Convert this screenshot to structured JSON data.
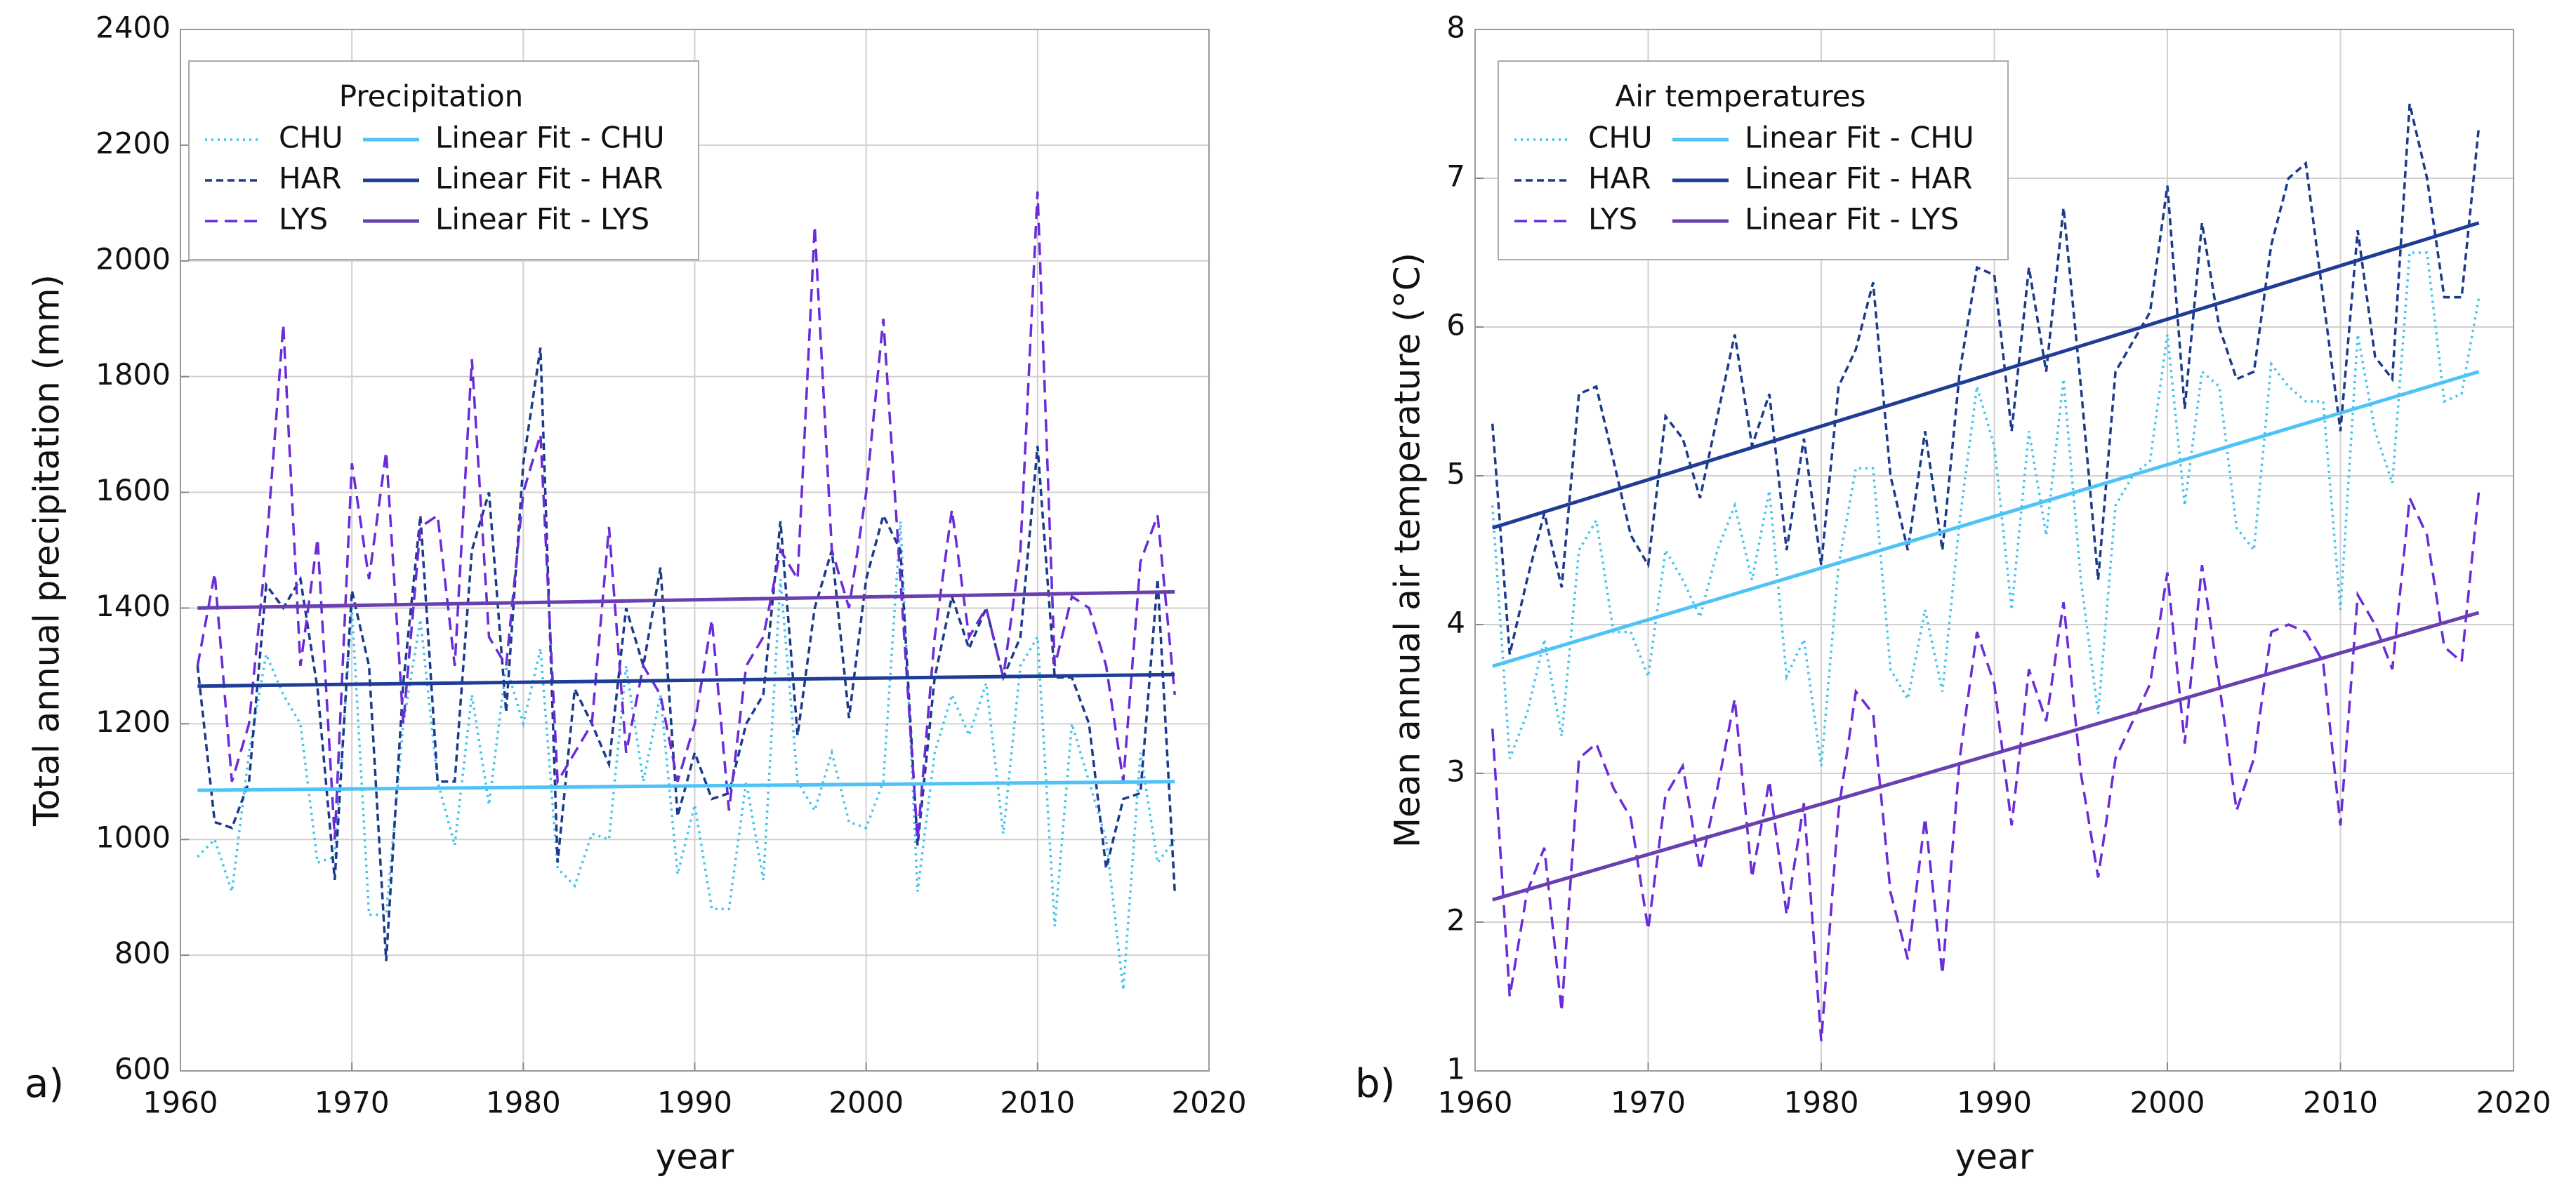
{
  "chart_data": [
    {
      "type": "line",
      "panel_label": "a)",
      "title": "Precipitation",
      "xlabel": "year",
      "ylabel": "Total annual precipitation (mm)",
      "xlim": [
        1960,
        2020
      ],
      "xticks": [
        1960,
        1970,
        1980,
        1990,
        2000,
        2010,
        2020
      ],
      "ylim": [
        600,
        2400
      ],
      "yticks": [
        600,
        800,
        1000,
        1200,
        1400,
        1600,
        1800,
        2000,
        2200,
        2400
      ],
      "grid": true,
      "x": [
        1961,
        1962,
        1963,
        1964,
        1965,
        1966,
        1967,
        1968,
        1969,
        1970,
        1971,
        1972,
        1973,
        1974,
        1975,
        1976,
        1977,
        1978,
        1979,
        1980,
        1981,
        1982,
        1983,
        1984,
        1985,
        1986,
        1987,
        1988,
        1989,
        1990,
        1991,
        1992,
        1993,
        1994,
        1995,
        1996,
        1997,
        1998,
        1999,
        2000,
        2001,
        2002,
        2003,
        2004,
        2005,
        2006,
        2007,
        2008,
        2009,
        2010,
        2011,
        2012,
        2013,
        2014,
        2015,
        2016,
        2017,
        2018
      ],
      "series": [
        {
          "name": "CHU",
          "color": "#3fc3ee",
          "linestyle": "dotted",
          "values": [
            970,
            1000,
            910,
            1150,
            1320,
            1250,
            1200,
            960,
            970,
            1400,
            870,
            870,
            1200,
            1380,
            1100,
            990,
            1250,
            1060,
            1300,
            1200,
            1330,
            950,
            920,
            1010,
            1000,
            1300,
            1100,
            1250,
            940,
            1060,
            880,
            880,
            1100,
            930,
            1450,
            1100,
            1050,
            1150,
            1030,
            1020,
            1100,
            1550,
            910,
            1150,
            1250,
            1180,
            1270,
            1010,
            1300,
            1350,
            850,
            1200,
            1100,
            1000,
            740,
            1150,
            960,
            1000
          ]
        },
        {
          "name": "HAR",
          "color": "#1b3a8c",
          "linestyle": "shortdash",
          "values": [
            1300,
            1030,
            1020,
            1100,
            1440,
            1400,
            1450,
            1260,
            930,
            1430,
            1300,
            790,
            1270,
            1560,
            1100,
            1100,
            1500,
            1600,
            1220,
            1650,
            1850,
            960,
            1260,
            1200,
            1130,
            1400,
            1300,
            1470,
            1040,
            1150,
            1070,
            1080,
            1200,
            1250,
            1550,
            1180,
            1400,
            1500,
            1210,
            1450,
            1560,
            1500,
            990,
            1280,
            1420,
            1330,
            1400,
            1280,
            1350,
            1680,
            1280,
            1280,
            1200,
            950,
            1070,
            1080,
            1450,
            910
          ]
        },
        {
          "name": "LYS",
          "color": "#6a2bd8",
          "linestyle": "dashed",
          "values": [
            1300,
            1460,
            1100,
            1200,
            1500,
            1890,
            1300,
            1520,
            1000,
            1650,
            1450,
            1670,
            1200,
            1540,
            1560,
            1300,
            1830,
            1350,
            1300,
            1600,
            1700,
            1100,
            1150,
            1200,
            1540,
            1150,
            1300,
            1250,
            1100,
            1200,
            1380,
            1050,
            1300,
            1350,
            1500,
            1450,
            2060,
            1500,
            1400,
            1600,
            1900,
            1450,
            1000,
            1350,
            1570,
            1350,
            1400,
            1280,
            1500,
            2120,
            1300,
            1420,
            1400,
            1300,
            1100,
            1480,
            1560,
            1250
          ]
        },
        {
          "name": "Linear Fit - CHU",
          "color": "#4fc3f7",
          "linestyle": "solid",
          "x": [
            1961,
            2018
          ],
          "values": [
            1085,
            1100
          ]
        },
        {
          "name": "Linear Fit - HAR",
          "color": "#1f3c96",
          "linestyle": "solid",
          "x": [
            1961,
            2018
          ],
          "values": [
            1265,
            1285
          ]
        },
        {
          "name": "Linear Fit - LYS",
          "color": "#6a3fb0",
          "linestyle": "solid",
          "x": [
            1961,
            2018
          ],
          "values": [
            1400,
            1428
          ]
        }
      ]
    },
    {
      "type": "line",
      "panel_label": "b)",
      "title": "Air temperatures",
      "xlabel": "year",
      "ylabel": "Mean annual air temperature (°C)",
      "xlim": [
        1960,
        2020
      ],
      "xticks": [
        1960,
        1970,
        1980,
        1990,
        2000,
        2010,
        2020
      ],
      "ylim": [
        1,
        8
      ],
      "yticks": [
        1,
        2,
        3,
        4,
        5,
        6,
        7,
        8
      ],
      "grid": true,
      "x": [
        1961,
        1962,
        1963,
        1964,
        1965,
        1966,
        1967,
        1968,
        1969,
        1970,
        1971,
        1972,
        1973,
        1974,
        1975,
        1976,
        1977,
        1978,
        1979,
        1980,
        1981,
        1982,
        1983,
        1984,
        1985,
        1986,
        1987,
        1988,
        1989,
        1990,
        1991,
        1992,
        1993,
        1994,
        1995,
        1996,
        1997,
        1998,
        1999,
        2000,
        2001,
        2002,
        2003,
        2004,
        2005,
        2006,
        2007,
        2008,
        2009,
        2010,
        2011,
        2012,
        2013,
        2014,
        2015,
        2016,
        2017,
        2018
      ],
      "series": [
        {
          "name": "CHU",
          "color": "#3fc3ee",
          "linestyle": "dotted",
          "values": [
            4.8,
            3.1,
            3.4,
            3.9,
            3.25,
            4.5,
            4.7,
            3.95,
            3.95,
            3.65,
            4.5,
            4.3,
            4.05,
            4.5,
            4.8,
            4.3,
            4.9,
            3.65,
            3.9,
            3.05,
            4.4,
            5.05,
            5.05,
            3.7,
            3.5,
            4.1,
            3.55,
            4.7,
            5.6,
            5.2,
            4.1,
            5.3,
            4.6,
            5.65,
            4.3,
            3.4,
            4.8,
            5.0,
            5.1,
            5.95,
            4.8,
            5.7,
            5.6,
            4.65,
            4.5,
            5.75,
            5.6,
            5.5,
            5.5,
            4.1,
            5.95,
            5.3,
            4.95,
            6.5,
            6.5,
            5.5,
            5.55,
            6.2
          ]
        },
        {
          "name": "HAR",
          "color": "#1b3a8c",
          "linestyle": "shortdash",
          "values": [
            5.35,
            3.8,
            4.3,
            4.75,
            4.25,
            5.55,
            5.6,
            5.1,
            4.6,
            4.4,
            5.4,
            5.25,
            4.85,
            5.4,
            5.95,
            5.2,
            5.55,
            4.5,
            5.25,
            4.4,
            5.6,
            5.85,
            6.3,
            5.0,
            4.5,
            5.3,
            4.5,
            5.7,
            6.4,
            6.35,
            5.3,
            6.4,
            5.7,
            6.8,
            5.6,
            4.3,
            5.7,
            5.9,
            6.1,
            6.95,
            5.45,
            6.7,
            6.0,
            5.65,
            5.7,
            6.55,
            7.0,
            7.1,
            6.2,
            5.3,
            6.65,
            5.8,
            5.65,
            7.5,
            7.0,
            6.2,
            6.2,
            7.35
          ]
        },
        {
          "name": "LYS",
          "color": "#6a2bd8",
          "linestyle": "dashed",
          "values": [
            3.3,
            1.5,
            2.2,
            2.5,
            1.4,
            3.1,
            3.2,
            2.9,
            2.7,
            1.95,
            2.85,
            3.05,
            2.35,
            2.9,
            3.5,
            2.3,
            2.95,
            2.05,
            2.8,
            1.2,
            2.75,
            3.55,
            3.4,
            2.2,
            1.75,
            2.7,
            1.65,
            3.1,
            3.95,
            3.6,
            2.65,
            3.7,
            3.35,
            4.15,
            3.0,
            2.3,
            3.1,
            3.35,
            3.6,
            4.35,
            3.2,
            4.4,
            3.6,
            2.75,
            3.1,
            3.95,
            4.0,
            3.95,
            3.75,
            2.65,
            4.2,
            4.0,
            3.7,
            4.85,
            4.6,
            3.85,
            3.75,
            4.9
          ]
        },
        {
          "name": "Linear Fit - CHU",
          "color": "#4fc3f7",
          "linestyle": "solid",
          "x": [
            1961,
            2018
          ],
          "values": [
            3.72,
            5.7
          ]
        },
        {
          "name": "Linear Fit - HAR",
          "color": "#1f3c96",
          "linestyle": "solid",
          "x": [
            1961,
            2018
          ],
          "values": [
            4.65,
            6.7
          ]
        },
        {
          "name": "Linear Fit - LYS",
          "color": "#6a3fb0",
          "linestyle": "solid",
          "x": [
            1961,
            2018
          ],
          "values": [
            2.15,
            4.08
          ]
        }
      ]
    }
  ]
}
